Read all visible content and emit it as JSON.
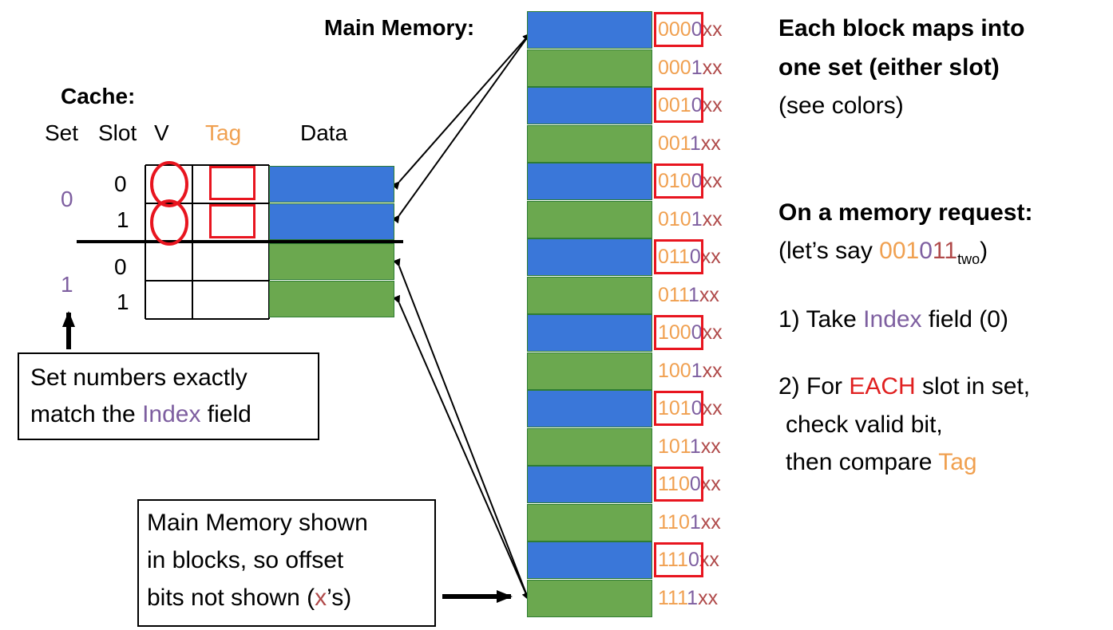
{
  "colors": {
    "blue": "#3A77D9",
    "green": "#6BA84F",
    "orange": "#F0A050",
    "purple": "#7E5FA0",
    "red": "#E8151F",
    "dark_red": "#B04A4A"
  },
  "main_memory": {
    "label": "Main Memory:",
    "blocks": [
      {
        "tag": "000",
        "index": "0",
        "offset": "xx",
        "color": "blue"
      },
      {
        "tag": "000",
        "index": "1",
        "offset": "xx",
        "color": "green"
      },
      {
        "tag": "001",
        "index": "0",
        "offset": "xx",
        "color": "blue"
      },
      {
        "tag": "001",
        "index": "1",
        "offset": "xx",
        "color": "green"
      },
      {
        "tag": "010",
        "index": "0",
        "offset": "xx",
        "color": "blue"
      },
      {
        "tag": "010",
        "index": "1",
        "offset": "xx",
        "color": "green"
      },
      {
        "tag": "011",
        "index": "0",
        "offset": "xx",
        "color": "blue"
      },
      {
        "tag": "011",
        "index": "1",
        "offset": "xx",
        "color": "green"
      },
      {
        "tag": "100",
        "index": "0",
        "offset": "xx",
        "color": "blue"
      },
      {
        "tag": "100",
        "index": "1",
        "offset": "xx",
        "color": "green"
      },
      {
        "tag": "101",
        "index": "0",
        "offset": "xx",
        "color": "blue"
      },
      {
        "tag": "101",
        "index": "1",
        "offset": "xx",
        "color": "green"
      },
      {
        "tag": "110",
        "index": "0",
        "offset": "xx",
        "color": "blue"
      },
      {
        "tag": "110",
        "index": "1",
        "offset": "xx",
        "color": "green"
      },
      {
        "tag": "111",
        "index": "0",
        "offset": "xx",
        "color": "blue"
      },
      {
        "tag": "111",
        "index": "1",
        "offset": "xx",
        "color": "green"
      }
    ]
  },
  "cache": {
    "title": "Cache:",
    "headers": {
      "set": "Set",
      "slot": "Slot",
      "valid": "V",
      "tag": "Tag",
      "data": "Data"
    },
    "sets": [
      {
        "set": "0",
        "slots": [
          "0",
          "1"
        ]
      },
      {
        "set": "1",
        "slots": [
          "0",
          "1"
        ]
      }
    ]
  },
  "callouts": {
    "set_numbers": {
      "line1": "Set numbers exactly",
      "line2_pre": "match the ",
      "line2_index": "Index",
      "line2_post": " field"
    },
    "memory_blocks": {
      "line1": "Main Memory shown",
      "line2": "in blocks, so offset",
      "line3_pre": "bits not shown (",
      "line3_x": "x",
      "line3_post": "’s)"
    }
  },
  "notes": {
    "mapping_line1": "Each block maps into",
    "mapping_line2": "one set (either slot)",
    "mapping_line3": "(see colors)",
    "request_heading": "On a memory request:",
    "request_pre": "(let’s say ",
    "request_tag": "001",
    "request_index": "0",
    "request_offset": "11",
    "request_sub": "two",
    "request_post": ")",
    "step1_pre": "1) Take ",
    "step1_index": "Index",
    "step1_post": " field (0)",
    "step2_pre": "2) For ",
    "step2_each": "EACH",
    "step2_post": " slot in set,",
    "step2_line2": "check valid bit,",
    "step2_line3_pre": "then compare ",
    "step2_line3_tag": "Tag"
  }
}
